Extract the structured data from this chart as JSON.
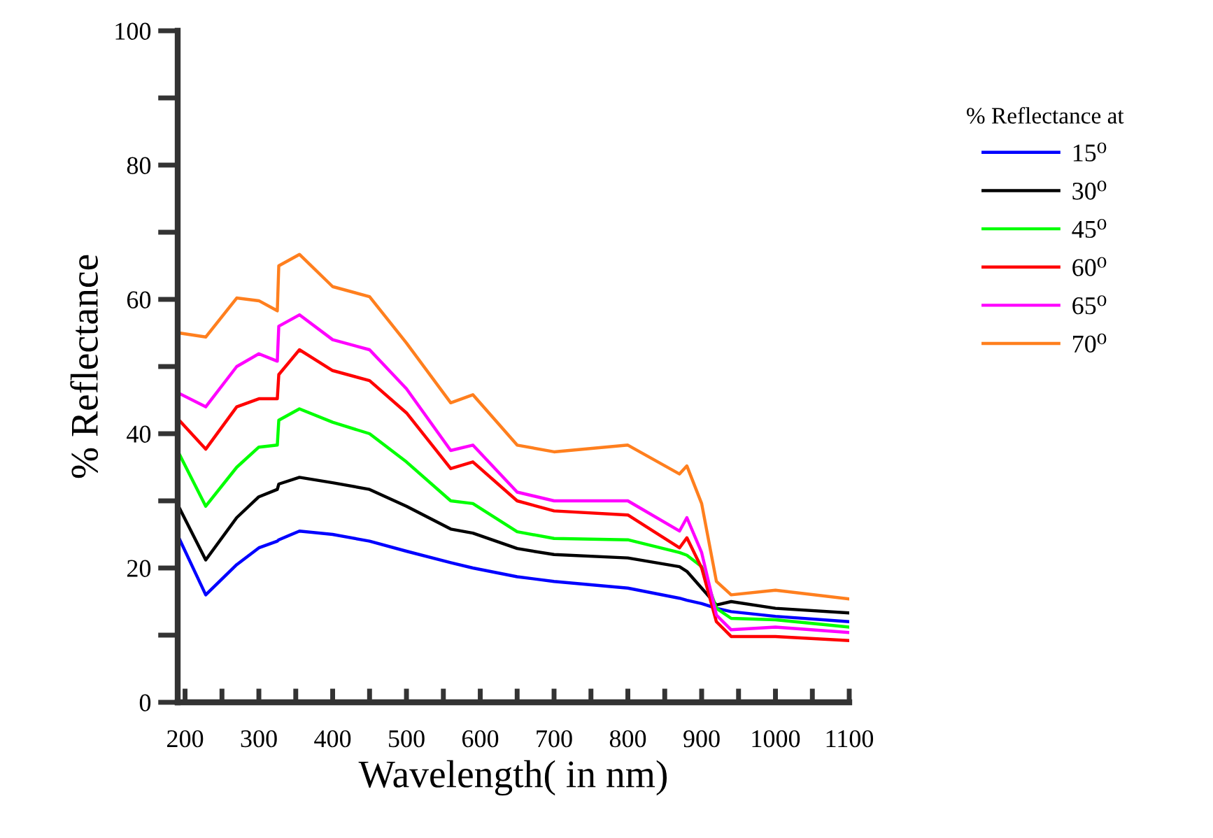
{
  "chart_data": {
    "type": "line",
    "xlabel": "Wavelength( in nm)",
    "ylabel": "% Reflectance",
    "legend_title": "% Reflectance at",
    "legend": "top right",
    "grid": false,
    "marker": "none",
    "line_style": "solid",
    "x": [
      192,
      228,
      270,
      300,
      325,
      327,
      355,
      400,
      450,
      500,
      560,
      590,
      650,
      700,
      800,
      870,
      880,
      900,
      920,
      940,
      1000,
      1100
    ],
    "xlim": [
      190,
      1100
    ],
    "xticks": [
      {
        "value": 200,
        "label": "200"
      },
      {
        "value": 250,
        "label": null
      },
      {
        "value": 300,
        "label": "300"
      },
      {
        "value": 350,
        "label": null
      },
      {
        "value": 400,
        "label": "400"
      },
      {
        "value": 450,
        "label": null
      },
      {
        "value": 500,
        "label": "500"
      },
      {
        "value": 550,
        "label": null
      },
      {
        "value": 600,
        "label": "600"
      },
      {
        "value": 650,
        "label": null
      },
      {
        "value": 700,
        "label": "700"
      },
      {
        "value": 750,
        "label": null
      },
      {
        "value": 800,
        "label": "800"
      },
      {
        "value": 850,
        "label": null
      },
      {
        "value": 900,
        "label": "900"
      },
      {
        "value": 950,
        "label": null
      },
      {
        "value": 1000,
        "label": "1000"
      },
      {
        "value": 1050,
        "label": null
      },
      {
        "value": 1100,
        "label": "1100"
      }
    ],
    "ylim": [
      0,
      100
    ],
    "yticks": [
      0,
      {
        "value": 10,
        "label": null
      },
      20,
      {
        "value": 30,
        "label": null
      },
      40,
      {
        "value": 50,
        "label": null
      },
      60,
      {
        "value": 70,
        "label": null
      },
      80,
      {
        "value": 90,
        "label": null
      },
      100
    ],
    "series": [
      {
        "name": "15⁰",
        "color": "#0000ff",
        "values": [
          24.4,
          16,
          20.5,
          23,
          24,
          24.2,
          25.5,
          25,
          24,
          22.5,
          20.8,
          20,
          18.7,
          18,
          17,
          15.5,
          15.2,
          14.7,
          14,
          13.5,
          12.8,
          12
        ]
      },
      {
        "name": "30⁰",
        "color": "#000000",
        "values": [
          29,
          21.2,
          27.5,
          30.6,
          31.7,
          32.5,
          33.5,
          32.7,
          31.7,
          29.2,
          25.8,
          25.2,
          22.9,
          22,
          21.5,
          20.2,
          19.5,
          17,
          14.5,
          15,
          14,
          13.3
        ]
      },
      {
        "name": "45⁰",
        "color": "#00ff00",
        "values": [
          37,
          29.2,
          35,
          38,
          38.3,
          42,
          43.7,
          41.7,
          40,
          35.8,
          30,
          29.6,
          25.4,
          24.4,
          24.2,
          22.3,
          21.9,
          20.2,
          14,
          12.5,
          12.3,
          11.2
        ]
      },
      {
        "name": "60⁰",
        "color": "#ff0000",
        "values": [
          42,
          37.7,
          44,
          45.2,
          45.2,
          48.8,
          52.5,
          49.4,
          47.9,
          43.1,
          34.8,
          35.8,
          30,
          28.5,
          27.9,
          23,
          24.5,
          20,
          12,
          9.8,
          9.8,
          9.2
        ]
      },
      {
        "name": "65⁰",
        "color": "#ff00ff",
        "values": [
          46,
          44,
          50,
          51.9,
          50.8,
          56,
          57.7,
          54,
          52.5,
          46.7,
          37.5,
          38.3,
          31.3,
          30,
          30,
          25.5,
          27.5,
          22.3,
          13,
          10.8,
          11.2,
          10.4
        ]
      },
      {
        "name": "70⁰",
        "color": "#ff7f1e",
        "values": [
          55,
          54.4,
          60.2,
          59.8,
          58.3,
          65,
          66.7,
          61.9,
          60.4,
          53.5,
          44.6,
          45.8,
          38.3,
          37.3,
          38.3,
          34,
          35.2,
          29.6,
          18,
          16,
          16.7,
          15.4
        ]
      }
    ]
  }
}
